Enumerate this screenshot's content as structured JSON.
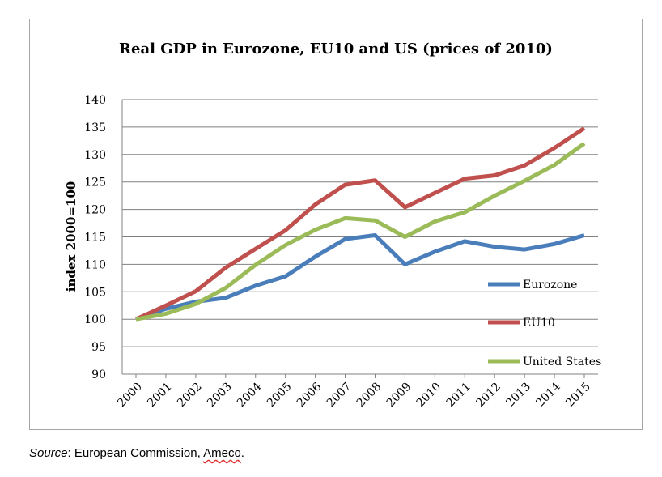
{
  "chart_data": {
    "type": "line",
    "title": "Real GDP in Eurozone, EU10 and US (prices of 2010)",
    "xlabel": "",
    "ylabel": "index 2000=100",
    "ylim": [
      90,
      140
    ],
    "ytick_step": 5,
    "grid": true,
    "legend_position": "right",
    "categories": [
      "2000",
      "2001",
      "2002",
      "2003",
      "2004",
      "2005",
      "2006",
      "2007",
      "2008",
      "2009",
      "2010",
      "2011",
      "2012",
      "2013",
      "2014",
      "2015"
    ],
    "series": [
      {
        "name": "Eurozone",
        "color": "#4a7ebb",
        "values": [
          100,
          101.9,
          103.2,
          103.9,
          106.1,
          107.8,
          111.4,
          114.6,
          115.3,
          110.0,
          112.3,
          114.2,
          113.2,
          112.7,
          113.7,
          115.3
        ]
      },
      {
        "name": "EU10",
        "color": "#c0504d",
        "values": [
          100,
          102.5,
          105.1,
          109.4,
          112.8,
          116.2,
          120.9,
          124.5,
          125.3,
          120.4,
          123.0,
          125.6,
          126.2,
          128.0,
          131.2,
          134.8
        ]
      },
      {
        "name": "United States",
        "color": "#9bbb59",
        "values": [
          100,
          101.0,
          102.8,
          105.7,
          109.9,
          113.5,
          116.3,
          118.4,
          118.0,
          115.0,
          117.8,
          119.5,
          122.5,
          125.2,
          128.1,
          132.0
        ]
      }
    ]
  },
  "source": {
    "label": "Source",
    "text_after_label": ": European Commission, ",
    "ameco": "Ameco",
    "trailing": "."
  }
}
